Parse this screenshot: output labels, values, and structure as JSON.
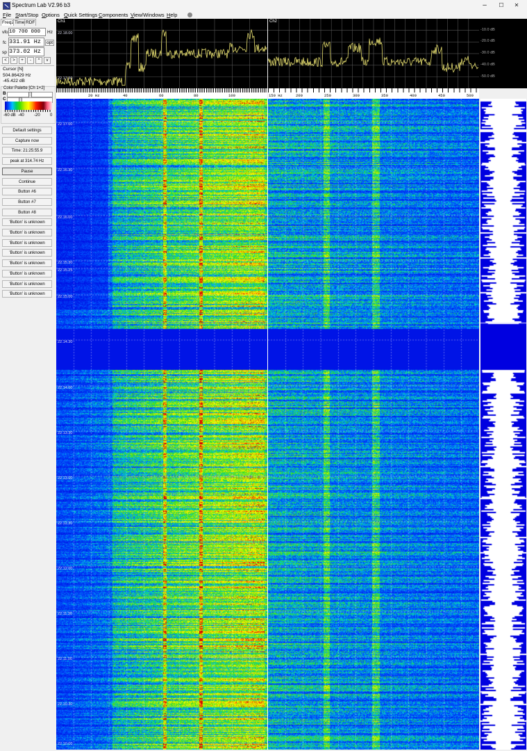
{
  "window": {
    "title": "Spectrum Lab V2.96 b3",
    "minimize": "–",
    "maximize": "☐",
    "close": "✕"
  },
  "menu": [
    "File",
    "Start/Stop",
    "Options",
    "Quick Settings",
    "Components",
    "View/Windows",
    "Help"
  ],
  "left_panel": {
    "tabs": [
      "Freq2",
      "Time",
      "RDF"
    ],
    "vfo_label": "vfo",
    "vfo_value": "10 700 000",
    "vfo_unit": "Hz",
    "fc_label": "fc",
    "fc_value": "331.91 Hz",
    "opt_label": "opt",
    "sp_label": "sp",
    "sp_value": "373.02 Hz",
    "nav_buttons": [
      "<",
      ">",
      "+",
      "-",
      "^",
      "v"
    ],
    "cursor": {
      "title": "Cursor [N]",
      "freq": "504.86429 Hz",
      "level": "-45.422 dB"
    },
    "palette": {
      "title": "Color Palette [Ch 1+2]",
      "b_label": "B",
      "c_label": "C",
      "ticks": [
        "-60 dB",
        "-40",
        "-20",
        "0"
      ]
    },
    "buttons": [
      "Default settings",
      "Capture now",
      "Time:  21:25:55.9",
      "peak at 314.74 Hz",
      "Pause",
      "Continue",
      "Button #6",
      "Button #7",
      "Button #8",
      "'Button' is unknown",
      "'Button' is unknown",
      "'Button' is unknown",
      "'Button' is unknown",
      "'Button' is unknown",
      "'Button' is unknown",
      "'Button' is unknown",
      "'Button' is unknown"
    ]
  },
  "ch1": {
    "label": "Ch1",
    "axis_labels": [
      "20  Hz",
      "40",
      "60",
      "80",
      "100"
    ]
  },
  "ch2": {
    "label": "Ch2",
    "axis_labels": [
      "150  Hz",
      "200",
      "250",
      "300",
      "350",
      "400",
      "450",
      "500"
    ],
    "db_labels": [
      "-10.0 dB",
      "-20.0 dB",
      "-30.0 dB",
      "-40.0 dB",
      "-50.0 dB"
    ]
  },
  "timestamps": [
    "22.18.00",
    "22.17.30",
    "22.17.00",
    "22.16.30",
    "22.16.00",
    "22.15.30",
    "22.15.25",
    "22.15.00",
    "22.14.30",
    "22.14.00",
    "22.13.30",
    "22.13.00",
    "22.12.30",
    "22.12.00",
    "22.11.30",
    "22.11.00",
    "22.10.30",
    "22.10.00"
  ],
  "colors": {
    "spectrum_trace": "#e8e070",
    "waterfall_bg": "#0018e0",
    "accent": "#ffffff"
  }
}
